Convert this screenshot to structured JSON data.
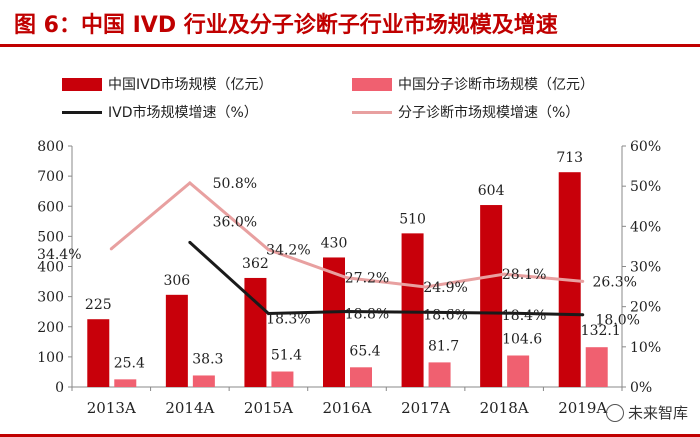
{
  "figure": {
    "title": "图 6：中国 IVD 行业及分子诊断子行业市场规模及增速",
    "watermark": "未来智库"
  },
  "legend": {
    "ivd_size": "中国IVD市场规模（亿元）",
    "md_size": "中国分子诊断市场规模（亿元）",
    "ivd_growth": "IVD市场规模增速（%）",
    "md_growth": "分子诊断市场规模增速（%）"
  },
  "colors": {
    "ivd_bar": "#c8000a",
    "md_bar": "#f06070",
    "ivd_line": "#1a1a1a",
    "md_line": "#e8a0a0",
    "title": "#c00000"
  },
  "chart_data": {
    "type": "bar",
    "categories": [
      "2013A",
      "2014A",
      "2015A",
      "2016A",
      "2017A",
      "2018A",
      "2019A"
    ],
    "series": [
      {
        "name": "中国IVD市场规模（亿元）",
        "type": "bar",
        "axis": "left",
        "values": [
          225,
          306,
          362,
          430,
          510,
          604,
          713
        ],
        "labels": [
          "225",
          "306",
          "362",
          "430",
          "510",
          "604",
          "713"
        ]
      },
      {
        "name": "中国分子诊断市场规模（亿元）",
        "type": "bar",
        "axis": "left",
        "values": [
          25.4,
          38.3,
          51.4,
          65.4,
          81.7,
          104.6,
          132.1
        ],
        "labels": [
          "25.4",
          "38.3",
          "51.4",
          "65.4",
          "81.7",
          "104.6",
          "132.1"
        ]
      },
      {
        "name": "IVD市场规模增速（%）",
        "type": "line",
        "axis": "right",
        "values": [
          null,
          36.0,
          18.3,
          18.8,
          18.6,
          18.4,
          18.0
        ],
        "labels": [
          "",
          "36.0%",
          "18.3%",
          "18.8%",
          "18.6%",
          "18.4%",
          "18.0%"
        ]
      },
      {
        "name": "分子诊断市场规模增速（%）",
        "type": "line",
        "axis": "right",
        "values": [
          34.4,
          50.8,
          34.2,
          27.2,
          24.9,
          28.1,
          26.3
        ],
        "labels": [
          "34.4%",
          "50.8%",
          "34.2%",
          "27.2%",
          "24.9%",
          "28.1%",
          "26.3%"
        ]
      }
    ],
    "y_left": {
      "ylim": [
        0,
        800
      ],
      "ticks": [
        "0",
        "100",
        "200",
        "300",
        "400",
        "500",
        "600",
        "700",
        "800"
      ]
    },
    "y_right": {
      "ylim": [
        0,
        60
      ],
      "ticks": [
        "0%",
        "10%",
        "20%",
        "30%",
        "40%",
        "50%",
        "60%"
      ]
    },
    "grid": false,
    "legend_position": "top"
  }
}
